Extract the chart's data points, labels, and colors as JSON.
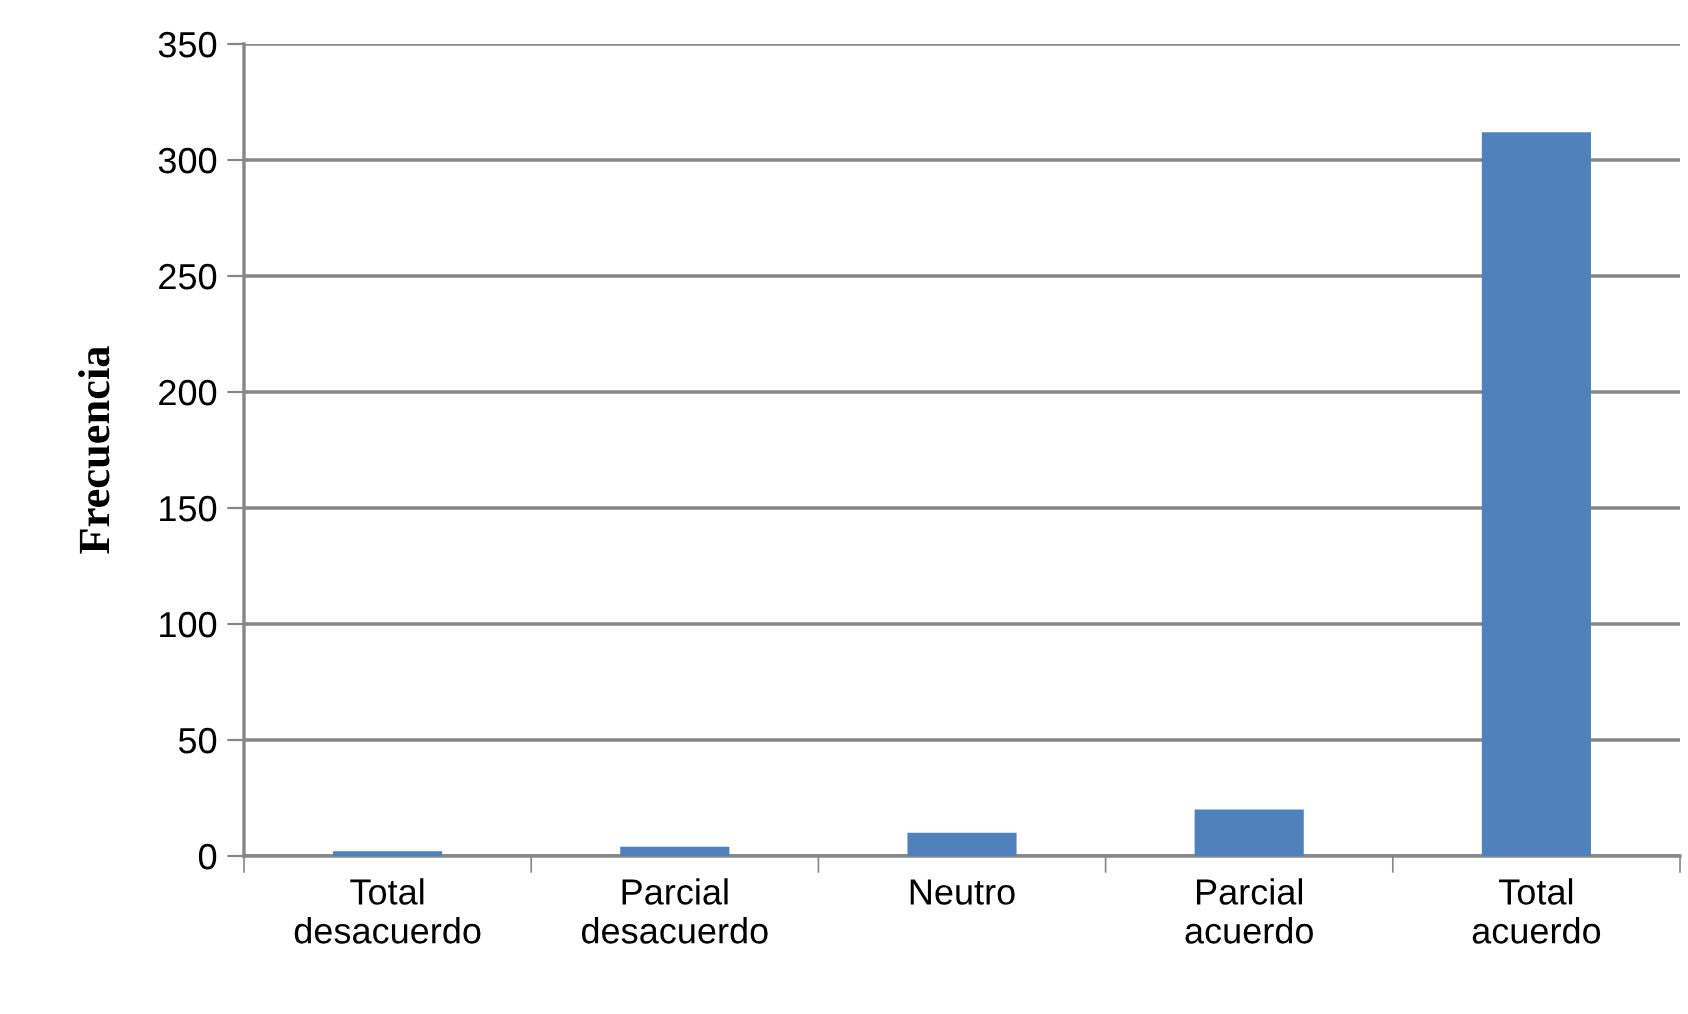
{
  "chart_data": {
    "type": "bar",
    "ylabel": "Frecuencia",
    "categories": [
      "Total\ndesacuerdo",
      "Parcial\ndesacuerdo",
      "Neutro",
      "Parcial\nacuerdo",
      "Total\nacuerdo"
    ],
    "values": [
      2,
      4,
      10,
      20,
      312
    ],
    "color": "#4f81bd",
    "ylim": [
      0,
      350
    ],
    "yticks": [
      0,
      50,
      100,
      150,
      200,
      250,
      300,
      350
    ],
    "grid": "y",
    "legend": false
  }
}
